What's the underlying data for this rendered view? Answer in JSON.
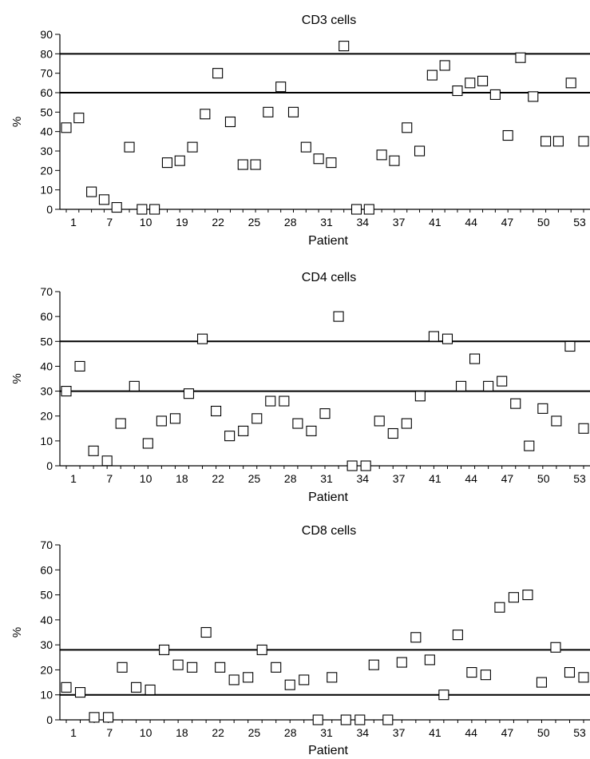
{
  "chart_data": [
    {
      "type": "scatter",
      "title": "CD3 cells",
      "xlabel": "Patient",
      "ylabel": "%",
      "ylim": [
        0,
        90
      ],
      "yticks": [
        0,
        10,
        20,
        30,
        40,
        50,
        60,
        70,
        80,
        90
      ],
      "xtick_labels": [
        "1",
        "7",
        "10",
        "19",
        "22",
        "25",
        "28",
        "31",
        "34",
        "37",
        "41",
        "44",
        "47",
        "50",
        "53"
      ],
      "reference_lines": [
        60,
        80
      ],
      "points": [
        {
          "x": 1,
          "y": 42
        },
        {
          "x": 2,
          "y": 47
        },
        {
          "x": 3,
          "y": 9
        },
        {
          "x": 4,
          "y": 5
        },
        {
          "x": 5,
          "y": 1
        },
        {
          "x": 6,
          "y": 32
        },
        {
          "x": 7,
          "y": 0
        },
        {
          "x": 8,
          "y": 0
        },
        {
          "x": 9,
          "y": 24
        },
        {
          "x": 10,
          "y": 25
        },
        {
          "x": 11,
          "y": 32
        },
        {
          "x": 12,
          "y": 49
        },
        {
          "x": 13,
          "y": 70
        },
        {
          "x": 14,
          "y": 45
        },
        {
          "x": 15,
          "y": 23
        },
        {
          "x": 16,
          "y": 23
        },
        {
          "x": 17,
          "y": 50
        },
        {
          "x": 18,
          "y": 63
        },
        {
          "x": 19,
          "y": 50
        },
        {
          "x": 20,
          "y": 32
        },
        {
          "x": 21,
          "y": 26
        },
        {
          "x": 22,
          "y": 24
        },
        {
          "x": 23,
          "y": 84
        },
        {
          "x": 24,
          "y": 0
        },
        {
          "x": 25,
          "y": 0
        },
        {
          "x": 26,
          "y": 28
        },
        {
          "x": 27,
          "y": 25
        },
        {
          "x": 28,
          "y": 42
        },
        {
          "x": 29,
          "y": 30
        },
        {
          "x": 30,
          "y": 69
        },
        {
          "x": 31,
          "y": 74
        },
        {
          "x": 32,
          "y": 61
        },
        {
          "x": 33,
          "y": 65
        },
        {
          "x": 34,
          "y": 66
        },
        {
          "x": 35,
          "y": 59
        },
        {
          "x": 36,
          "y": 38
        },
        {
          "x": 37,
          "y": 78
        },
        {
          "x": 38,
          "y": 58
        },
        {
          "x": 39,
          "y": 35
        },
        {
          "x": 40,
          "y": 35
        },
        {
          "x": 41,
          "y": 65
        },
        {
          "x": 42,
          "y": 35
        }
      ]
    },
    {
      "type": "scatter",
      "title": "CD4 cells",
      "xlabel": "Patient",
      "ylabel": "%",
      "ylim": [
        0,
        70
      ],
      "yticks": [
        0,
        10,
        20,
        30,
        40,
        50,
        60,
        70
      ],
      "xtick_labels": [
        "1",
        "7",
        "10",
        "18",
        "22",
        "25",
        "28",
        "31",
        "34",
        "37",
        "41",
        "44",
        "47",
        "50",
        "53"
      ],
      "reference_lines": [
        30,
        50
      ],
      "points": [
        {
          "x": 1,
          "y": 30
        },
        {
          "x": 2,
          "y": 40
        },
        {
          "x": 3,
          "y": 6
        },
        {
          "x": 4,
          "y": 2
        },
        {
          "x": 5,
          "y": 17
        },
        {
          "x": 6,
          "y": 32
        },
        {
          "x": 7,
          "y": 9
        },
        {
          "x": 8,
          "y": 18
        },
        {
          "x": 9,
          "y": 19
        },
        {
          "x": 10,
          "y": 29
        },
        {
          "x": 11,
          "y": 51
        },
        {
          "x": 12,
          "y": 22
        },
        {
          "x": 13,
          "y": 12
        },
        {
          "x": 14,
          "y": 14
        },
        {
          "x": 15,
          "y": 19
        },
        {
          "x": 16,
          "y": 26
        },
        {
          "x": 17,
          "y": 26
        },
        {
          "x": 18,
          "y": 17
        },
        {
          "x": 19,
          "y": 14
        },
        {
          "x": 20,
          "y": 21
        },
        {
          "x": 21,
          "y": 60
        },
        {
          "x": 22,
          "y": 0
        },
        {
          "x": 23,
          "y": 0
        },
        {
          "x": 24,
          "y": 18
        },
        {
          "x": 25,
          "y": 13
        },
        {
          "x": 26,
          "y": 17
        },
        {
          "x": 27,
          "y": 28
        },
        {
          "x": 28,
          "y": 52
        },
        {
          "x": 29,
          "y": 51
        },
        {
          "x": 30,
          "y": 32
        },
        {
          "x": 31,
          "y": 43
        },
        {
          "x": 32,
          "y": 32
        },
        {
          "x": 33,
          "y": 34
        },
        {
          "x": 34,
          "y": 25
        },
        {
          "x": 35,
          "y": 8
        },
        {
          "x": 36,
          "y": 23
        },
        {
          "x": 37,
          "y": 18
        },
        {
          "x": 38,
          "y": 48
        },
        {
          "x": 39,
          "y": 15
        }
      ]
    },
    {
      "type": "scatter",
      "title": "CD8 cells",
      "xlabel": "Patient",
      "ylabel": "%",
      "ylim": [
        0,
        70
      ],
      "yticks": [
        0,
        10,
        20,
        30,
        40,
        50,
        60,
        70
      ],
      "xtick_labels": [
        "1",
        "7",
        "10",
        "18",
        "22",
        "25",
        "28",
        "31",
        "34",
        "37",
        "41",
        "44",
        "47",
        "50",
        "53"
      ],
      "reference_lines": [
        10,
        28
      ],
      "points": [
        {
          "x": 1,
          "y": 13
        },
        {
          "x": 2,
          "y": 11
        },
        {
          "x": 3,
          "y": 1
        },
        {
          "x": 4,
          "y": 1
        },
        {
          "x": 5,
          "y": 21
        },
        {
          "x": 6,
          "y": 13
        },
        {
          "x": 7,
          "y": 12
        },
        {
          "x": 8,
          "y": 28
        },
        {
          "x": 9,
          "y": 22
        },
        {
          "x": 10,
          "y": 21
        },
        {
          "x": 11,
          "y": 35
        },
        {
          "x": 12,
          "y": 21
        },
        {
          "x": 13,
          "y": 16
        },
        {
          "x": 14,
          "y": 17
        },
        {
          "x": 15,
          "y": 28
        },
        {
          "x": 16,
          "y": 21
        },
        {
          "x": 17,
          "y": 14
        },
        {
          "x": 18,
          "y": 16
        },
        {
          "x": 19,
          "y": 0
        },
        {
          "x": 20,
          "y": 17
        },
        {
          "x": 21,
          "y": 0
        },
        {
          "x": 22,
          "y": 0
        },
        {
          "x": 23,
          "y": 22
        },
        {
          "x": 24,
          "y": 0
        },
        {
          "x": 25,
          "y": 23
        },
        {
          "x": 26,
          "y": 33
        },
        {
          "x": 27,
          "y": 24
        },
        {
          "x": 28,
          "y": 10
        },
        {
          "x": 29,
          "y": 34
        },
        {
          "x": 30,
          "y": 19
        },
        {
          "x": 31,
          "y": 18
        },
        {
          "x": 32,
          "y": 45
        },
        {
          "x": 33,
          "y": 49
        },
        {
          "x": 34,
          "y": 50
        },
        {
          "x": 35,
          "y": 15
        },
        {
          "x": 36,
          "y": 29
        },
        {
          "x": 37,
          "y": 19
        },
        {
          "x": 38,
          "y": 17
        }
      ]
    }
  ]
}
